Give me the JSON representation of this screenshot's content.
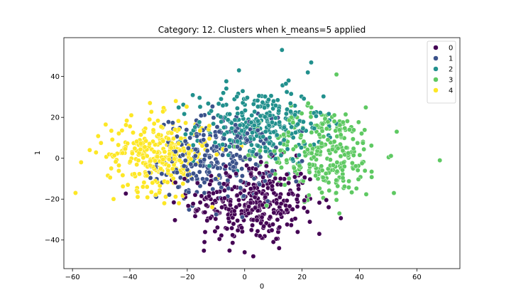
{
  "chart_data": {
    "type": "scatter",
    "title": "Category: 12. Clusters when k_means=5 applied",
    "xlabel": "0",
    "ylabel": "1",
    "xlim": [
      -63,
      75
    ],
    "ylim": [
      -54,
      59
    ],
    "xticks": [
      -60,
      -40,
      -20,
      0,
      20,
      40,
      60
    ],
    "yticks": [
      -40,
      -20,
      0,
      20,
      40
    ],
    "legend": {
      "placement": "top-right"
    },
    "grid": false,
    "series": [
      {
        "name": "0",
        "color": "#440154",
        "center": [
          3,
          -22
        ],
        "spread": [
          11,
          10
        ],
        "count": 330
      },
      {
        "name": "1",
        "color": "#3b528b",
        "center": [
          -10,
          0
        ],
        "spread": [
          10,
          10
        ],
        "count": 280
      },
      {
        "name": "2",
        "color": "#21908d",
        "center": [
          5,
          16
        ],
        "spread": [
          11,
          9
        ],
        "count": 300
      },
      {
        "name": "3",
        "color": "#5ec962",
        "center": [
          28,
          3
        ],
        "spread": [
          10,
          11
        ],
        "count": 280
      },
      {
        "name": "4",
        "color": "#fde725",
        "center": [
          -30,
          2
        ],
        "spread": [
          9,
          9
        ],
        "count": 300
      }
    ],
    "outliers": [
      {
        "series": "0",
        "x": 3,
        "y": -48
      },
      {
        "series": "0",
        "x": 0,
        "y": -46
      },
      {
        "series": "0",
        "x": 12,
        "y": -44
      },
      {
        "series": "0",
        "x": -14,
        "y": -41
      },
      {
        "series": "0",
        "x": 26,
        "y": -37
      },
      {
        "series": "2",
        "x": 13,
        "y": 53
      },
      {
        "series": "2",
        "x": -2,
        "y": 43
      },
      {
        "series": "2",
        "x": 22,
        "y": 42
      },
      {
        "series": "3",
        "x": 68,
        "y": -1
      },
      {
        "series": "3",
        "x": 53,
        "y": 13
      },
      {
        "series": "3",
        "x": 52,
        "y": -17
      },
      {
        "series": "3",
        "x": 32,
        "y": 41
      },
      {
        "series": "3",
        "x": 33,
        "y": -27
      },
      {
        "series": "4",
        "x": -57,
        "y": -2
      },
      {
        "series": "4",
        "x": -54,
        "y": 4
      },
      {
        "series": "4",
        "x": -33,
        "y": 27
      },
      {
        "series": "4",
        "x": -24,
        "y": 28
      },
      {
        "series": "4",
        "x": -28,
        "y": -22
      }
    ]
  }
}
